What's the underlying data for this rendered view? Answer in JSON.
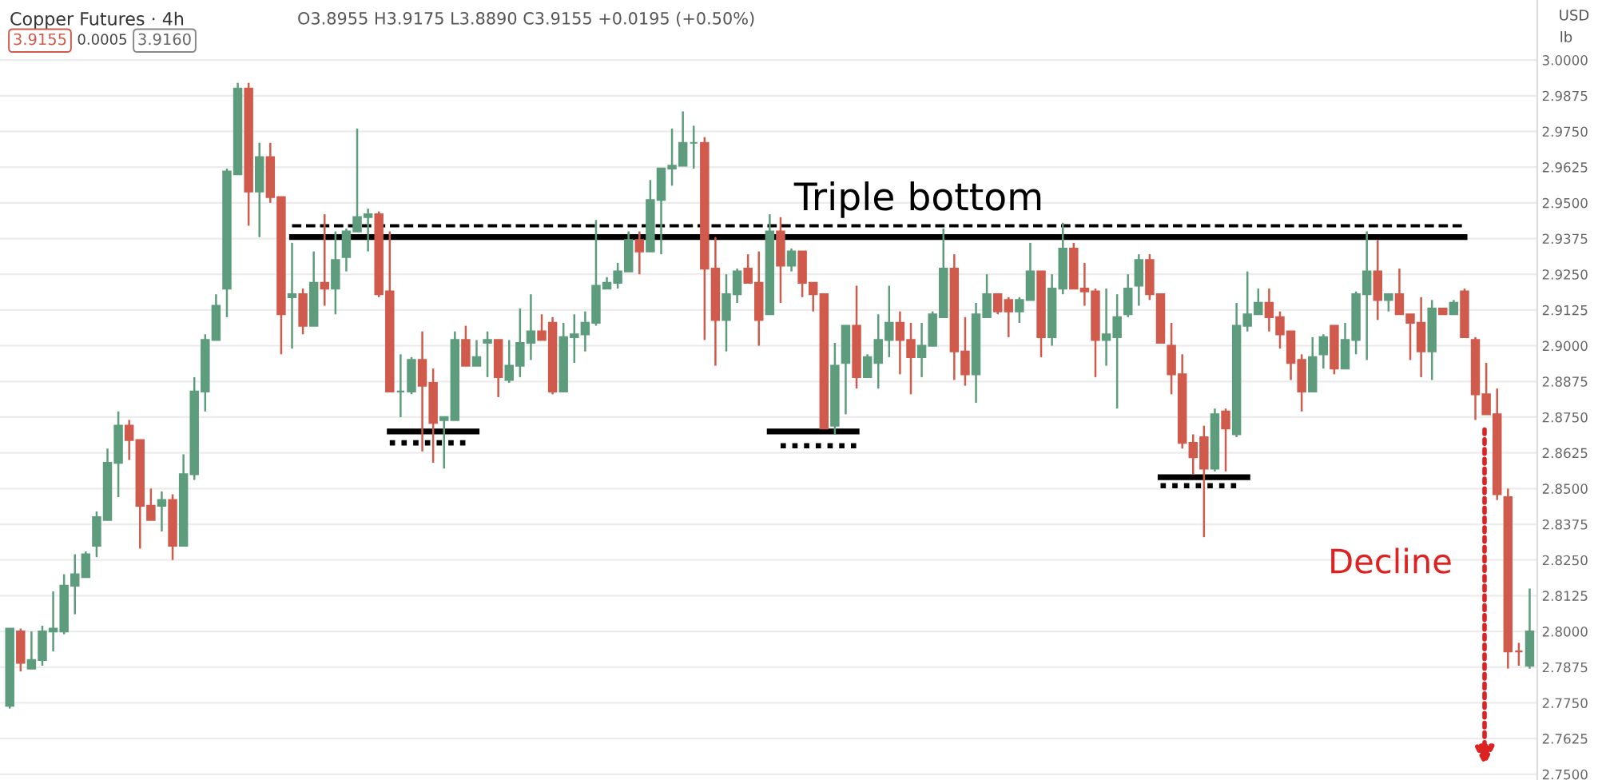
{
  "chart_data": {
    "type": "candlestick",
    "title": "Copper Futures · 4h",
    "categories": [
      null,
      null,
      null,
      null,
      null,
      null,
      null,
      null,
      null,
      null,
      null,
      null,
      null,
      null,
      null,
      null,
      null,
      null,
      null,
      null,
      null,
      null,
      null,
      null,
      null,
      null,
      null,
      null,
      null,
      null,
      null,
      null,
      null,
      null,
      null,
      null,
      null,
      null,
      null,
      null,
      null,
      null,
      null,
      null,
      null,
      null,
      null,
      null,
      null,
      null,
      null,
      null,
      null,
      null,
      null,
      null,
      null,
      null,
      null,
      null,
      null,
      null,
      null,
      null,
      null,
      null,
      null,
      null,
      null,
      null,
      null,
      null,
      null,
      null,
      null,
      null,
      null,
      null,
      null,
      null,
      null,
      null,
      null,
      null,
      null,
      null,
      null,
      null,
      null,
      null,
      null,
      null,
      null,
      null,
      null,
      null,
      null,
      null,
      null,
      null,
      null,
      null,
      null,
      null,
      null,
      null,
      null,
      null,
      null,
      null,
      null,
      null,
      null,
      null,
      null,
      null,
      null,
      null,
      null,
      null,
      null,
      null,
      null,
      null,
      null,
      null,
      null,
      null,
      null,
      null,
      null,
      null,
      null,
      null,
      null,
      null,
      null,
      null,
      null,
      null,
      null
    ],
    "ohlc": [
      [
        2.774,
        2.801,
        2.773,
        2.801
      ],
      [
        2.8,
        2.801,
        2.786,
        2.789
      ],
      [
        2.787,
        2.8,
        2.787,
        2.79
      ],
      [
        2.79,
        2.802,
        2.788,
        2.8
      ],
      [
        2.8,
        2.814,
        2.793,
        2.801
      ],
      [
        2.8,
        2.82,
        2.799,
        2.816
      ],
      [
        2.816,
        2.827,
        2.806,
        2.82
      ],
      [
        2.819,
        2.828,
        2.819,
        2.827
      ],
      [
        2.83,
        2.842,
        2.826,
        2.84
      ],
      [
        2.839,
        2.864,
        2.839,
        2.859
      ],
      [
        2.859,
        2.877,
        2.847,
        2.872
      ],
      [
        2.872,
        2.874,
        2.86,
        2.867
      ],
      [
        2.867,
        2.867,
        2.829,
        2.844
      ],
      [
        2.844,
        2.85,
        2.839,
        2.839
      ],
      [
        2.844,
        2.849,
        2.835,
        2.846
      ],
      [
        2.846,
        2.848,
        2.825,
        2.83
      ],
      [
        2.83,
        2.862,
        2.83,
        2.855
      ],
      [
        2.855,
        2.889,
        2.853,
        2.884
      ],
      [
        2.884,
        2.904,
        2.877,
        2.902
      ],
      [
        2.902,
        2.918,
        2.902,
        2.914
      ],
      [
        2.92,
        2.962,
        2.91,
        2.961
      ],
      [
        2.96,
        2.992,
        2.96,
        2.99
      ],
      [
        2.99,
        2.992,
        2.942,
        2.954
      ],
      [
        2.954,
        2.971,
        2.938,
        2.966
      ],
      [
        2.966,
        2.971,
        2.95,
        2.952
      ],
      [
        2.952,
        2.952,
        2.897,
        2.911
      ],
      [
        2.917,
        2.936,
        2.899,
        2.918
      ],
      [
        2.918,
        2.92,
        2.904,
        2.907
      ],
      [
        2.907,
        2.933,
        2.907,
        2.922
      ],
      [
        2.922,
        2.946,
        2.914,
        2.92
      ],
      [
        2.92,
        2.94,
        2.911,
        2.93
      ],
      [
        2.931,
        2.941,
        2.926,
        2.94
      ],
      [
        2.94,
        2.976,
        2.94,
        2.945
      ],
      [
        2.945,
        2.948,
        2.933,
        2.946
      ],
      [
        2.946,
        2.947,
        2.917,
        2.918
      ],
      [
        2.919,
        2.94,
        2.884,
        2.884
      ],
      [
        2.884,
        2.897,
        2.875,
        2.884
      ],
      [
        2.884,
        2.896,
        2.883,
        2.895
      ],
      [
        2.895,
        2.905,
        2.863,
        2.886
      ],
      [
        2.887,
        2.892,
        2.859,
        2.873
      ],
      [
        2.874,
        2.875,
        2.857,
        2.875
      ],
      [
        2.874,
        2.905,
        2.874,
        2.902
      ],
      [
        2.902,
        2.907,
        2.893,
        2.893
      ],
      [
        2.893,
        2.902,
        2.893,
        2.896
      ],
      [
        2.901,
        2.905,
        2.889,
        2.902
      ],
      [
        2.902,
        2.902,
        2.882,
        2.889
      ],
      [
        2.888,
        2.902,
        2.887,
        2.893
      ],
      [
        2.893,
        2.913,
        2.889,
        2.901
      ],
      [
        2.901,
        2.918,
        2.895,
        2.905
      ],
      [
        2.905,
        2.911,
        2.902,
        2.902
      ],
      [
        2.908,
        2.91,
        2.883,
        2.884
      ],
      [
        2.884,
        2.908,
        2.884,
        2.903
      ],
      [
        2.903,
        2.911,
        2.894,
        2.904
      ],
      [
        2.904,
        2.912,
        2.898,
        2.908
      ],
      [
        2.908,
        2.944,
        2.907,
        2.921
      ],
      [
        2.92,
        2.924,
        2.92,
        2.922
      ],
      [
        2.922,
        2.929,
        2.92,
        2.926
      ],
      [
        2.926,
        2.94,
        2.926,
        2.937
      ],
      [
        2.937,
        2.94,
        2.925,
        2.933
      ],
      [
        2.933,
        2.958,
        2.933,
        2.951
      ],
      [
        2.951,
        2.962,
        2.932,
        2.962
      ],
      [
        2.962,
        2.976,
        2.956,
        2.963
      ],
      [
        2.963,
        2.982,
        2.963,
        2.971
      ],
      [
        2.971,
        2.977,
        2.962,
        2.971
      ],
      [
        2.971,
        2.973,
        2.902,
        2.927
      ],
      [
        2.927,
        2.938,
        2.893,
        2.909
      ],
      [
        2.909,
        2.925,
        2.898,
        2.918
      ],
      [
        2.918,
        2.927,
        2.915,
        2.926
      ],
      [
        2.927,
        2.932,
        2.922,
        2.922
      ],
      [
        2.922,
        2.933,
        2.9,
        2.909
      ],
      [
        2.911,
        2.946,
        2.911,
        2.94
      ],
      [
        2.94,
        2.945,
        2.915,
        2.928
      ],
      [
        2.928,
        2.934,
        2.926,
        2.933
      ],
      [
        2.933,
        2.933,
        2.917,
        2.922
      ],
      [
        2.922,
        2.922,
        2.912,
        2.918
      ],
      [
        2.918,
        2.918,
        2.871,
        2.871
      ],
      [
        2.872,
        2.901,
        2.869,
        2.893
      ],
      [
        2.894,
        2.907,
        2.876,
        2.907
      ],
      [
        2.907,
        2.921,
        2.885,
        2.889
      ],
      [
        2.889,
        2.897,
        2.889,
        2.896
      ],
      [
        2.894,
        2.911,
        2.885,
        2.902
      ],
      [
        2.902,
        2.921,
        2.896,
        2.908
      ],
      [
        2.908,
        2.912,
        2.89,
        2.902
      ],
      [
        2.902,
        2.908,
        2.883,
        2.896
      ],
      [
        2.896,
        2.908,
        2.889,
        2.9
      ],
      [
        2.9,
        2.912,
        2.9,
        2.911
      ],
      [
        2.91,
        2.941,
        2.91,
        2.927
      ],
      [
        2.927,
        2.932,
        2.888,
        2.898
      ],
      [
        2.898,
        2.91,
        2.886,
        2.89
      ],
      [
        2.89,
        2.915,
        2.88,
        2.911
      ],
      [
        2.91,
        2.925,
        2.91,
        2.918
      ],
      [
        2.918,
        2.918,
        2.911,
        2.912
      ],
      [
        2.916,
        2.917,
        2.903,
        2.912
      ],
      [
        2.912,
        2.917,
        2.908,
        2.916
      ],
      [
        2.916,
        2.936,
        2.916,
        2.926
      ],
      [
        2.926,
        2.926,
        2.896,
        2.903
      ],
      [
        2.903,
        2.925,
        2.9,
        2.92
      ],
      [
        2.92,
        2.943,
        2.918,
        2.934
      ],
      [
        2.934,
        2.936,
        2.92,
        2.92
      ],
      [
        2.92,
        2.929,
        2.914,
        2.919
      ],
      [
        2.919,
        2.92,
        2.889,
        2.902
      ],
      [
        2.902,
        2.92,
        2.893,
        2.904
      ],
      [
        2.903,
        2.918,
        2.878,
        2.91
      ],
      [
        2.911,
        2.925,
        2.91,
        2.92
      ],
      [
        2.921,
        2.932,
        2.914,
        2.93
      ],
      [
        2.93,
        2.932,
        2.916,
        2.918
      ],
      [
        2.918,
        2.918,
        2.901,
        2.901
      ],
      [
        2.9,
        2.908,
        2.883,
        2.89
      ],
      [
        2.89,
        2.897,
        2.864,
        2.866
      ],
      [
        2.866,
        2.869,
        2.855,
        2.861
      ],
      [
        2.868,
        2.872,
        2.833,
        2.857
      ],
      [
        2.857,
        2.878,
        2.856,
        2.876
      ],
      [
        2.877,
        2.878,
        2.856,
        2.871
      ],
      [
        2.869,
        2.915,
        2.868,
        2.907
      ],
      [
        2.907,
        2.926,
        2.905,
        2.911
      ],
      [
        2.911,
        2.92,
        2.911,
        2.915
      ],
      [
        2.915,
        2.92,
        2.905,
        2.91
      ],
      [
        2.91,
        2.912,
        2.899,
        2.904
      ],
      [
        2.905,
        2.905,
        2.888,
        2.894
      ],
      [
        2.895,
        2.897,
        2.877,
        2.884
      ],
      [
        2.884,
        2.903,
        2.884,
        2.896
      ],
      [
        2.897,
        2.904,
        2.892,
        2.903
      ],
      [
        2.907,
        2.907,
        2.89,
        2.892
      ],
      [
        2.892,
        2.908,
        2.892,
        2.902
      ],
      [
        2.902,
        2.919,
        2.897,
        2.918
      ],
      [
        2.918,
        2.94,
        2.895,
        2.926
      ],
      [
        2.926,
        2.937,
        2.909,
        2.916
      ],
      [
        2.916,
        2.918,
        2.912,
        2.918
      ],
      [
        2.918,
        2.927,
        2.911,
        2.911
      ],
      [
        2.911,
        2.911,
        2.895,
        2.908
      ],
      [
        2.908,
        2.917,
        2.889,
        2.898
      ],
      [
        2.898,
        2.916,
        2.888,
        2.913
      ],
      [
        2.913,
        2.913,
        2.911,
        2.911
      ],
      [
        2.911,
        2.916,
        2.911,
        2.915
      ],
      [
        2.919,
        2.92,
        2.903,
        2.903
      ],
      [
        2.902,
        2.903,
        2.874,
        2.883
      ],
      [
        2.883,
        2.894,
        2.876,
        2.876
      ],
      [
        2.876,
        2.885,
        2.846,
        2.848
      ],
      [
        2.847,
        2.85,
        2.787,
        2.793
      ],
      [
        2.793,
        2.796,
        2.788,
        2.793
      ],
      [
        2.788,
        2.815,
        2.787,
        2.8
      ]
    ],
    "colors": [
      "#5d9c7c",
      "#d05a4b",
      "#5d9c7c",
      "#5d9c7c",
      "#5d9c7c",
      "#5d9c7c",
      "#5d9c7c",
      "#5d9c7c",
      "#5d9c7c",
      "#5d9c7c",
      "#5d9c7c",
      "#d05a4b",
      "#d05a4b",
      "#d05a4b",
      "#5d9c7c",
      "#d05a4b",
      "#5d9c7c",
      "#5d9c7c",
      "#5d9c7c",
      "#5d9c7c",
      "#5d9c7c",
      "#5d9c7c",
      "#d05a4b",
      "#5d9c7c",
      "#d05a4b",
      "#d05a4b",
      "#5d9c7c",
      "#d05a4b",
      "#5d9c7c",
      "#d05a4b",
      "#5d9c7c",
      "#5d9c7c",
      "#5d9c7c",
      "#5d9c7c",
      "#d05a4b",
      "#d05a4b",
      "#5d9c7c",
      "#5d9c7c",
      "#d05a4b",
      "#d05a4b",
      "#5d9c7c",
      "#5d9c7c",
      "#d05a4b",
      "#5d9c7c",
      "#5d9c7c",
      "#d05a4b",
      "#5d9c7c",
      "#5d9c7c",
      "#5d9c7c",
      "#d05a4b",
      "#d05a4b",
      "#5d9c7c",
      "#5d9c7c",
      "#5d9c7c",
      "#5d9c7c",
      "#5d9c7c",
      "#5d9c7c",
      "#5d9c7c",
      "#d05a4b",
      "#5d9c7c",
      "#5d9c7c",
      "#5d9c7c",
      "#5d9c7c",
      "#5d9c7c",
      "#d05a4b",
      "#d05a4b",
      "#5d9c7c",
      "#5d9c7c",
      "#d05a4b",
      "#d05a4b",
      "#5d9c7c",
      "#d05a4b",
      "#5d9c7c",
      "#d05a4b",
      "#d05a4b",
      "#d05a4b",
      "#5d9c7c",
      "#5d9c7c",
      "#d05a4b",
      "#5d9c7c",
      "#5d9c7c",
      "#5d9c7c",
      "#d05a4b",
      "#d05a4b",
      "#5d9c7c",
      "#5d9c7c",
      "#5d9c7c",
      "#d05a4b",
      "#d05a4b",
      "#5d9c7c",
      "#5d9c7c",
      "#d05a4b",
      "#d05a4b",
      "#5d9c7c",
      "#5d9c7c",
      "#d05a4b",
      "#5d9c7c",
      "#5d9c7c",
      "#d05a4b",
      "#d05a4b",
      "#d05a4b",
      "#5d9c7c",
      "#5d9c7c",
      "#5d9c7c",
      "#5d9c7c",
      "#d05a4b",
      "#d05a4b",
      "#d05a4b",
      "#d05a4b",
      "#d05a4b",
      "#d05a4b",
      "#5d9c7c",
      "#d05a4b",
      "#5d9c7c",
      "#5d9c7c",
      "#5d9c7c",
      "#d05a4b",
      "#d05a4b",
      "#d05a4b",
      "#d05a4b",
      "#5d9c7c",
      "#5d9c7c",
      "#d05a4b",
      "#5d9c7c",
      "#5d9c7c",
      "#5d9c7c",
      "#d05a4b",
      "#5d9c7c",
      "#d05a4b",
      "#d05a4b",
      "#d05a4b",
      "#5d9c7c",
      "#d05a4b",
      "#5d9c7c",
      "#d05a4b",
      "#d05a4b",
      "#d05a4b",
      "#d05a4b",
      "#d05a4b",
      "#d05a4b",
      "#5d9c7c"
    ],
    "series": [
      {
        "type": "line",
        "color": "#000000",
        "line_style": "dashed",
        "values": [
          null,
          null,
          null,
          null,
          null,
          null,
          null,
          null,
          null,
          null,
          null,
          null,
          null,
          null,
          null,
          null,
          null,
          null,
          null,
          null,
          null,
          null,
          null,
          null,
          null,
          null,
          2.942,
          2.942,
          2.942,
          2.942,
          2.942,
          2.942,
          2.942,
          2.942,
          2.942,
          2.942,
          2.942,
          2.942,
          2.942,
          2.942,
          2.942,
          2.942,
          2.942,
          2.942,
          2.942,
          2.942,
          2.942,
          2.942,
          2.942,
          2.942,
          2.942,
          2.942,
          2.942,
          2.942,
          2.942,
          2.942,
          2.942,
          2.942,
          2.942,
          2.942,
          2.942,
          2.942,
          2.942,
          2.942,
          2.942,
          2.942,
          2.942,
          2.942,
          2.942,
          2.942,
          2.942,
          2.942,
          2.942,
          2.942,
          2.942,
          2.942,
          2.942,
          2.942,
          2.942,
          2.942,
          2.942,
          2.942,
          2.942,
          2.942,
          2.942,
          2.942,
          2.942,
          2.942,
          2.942,
          2.942,
          2.942,
          2.942,
          2.942,
          2.942,
          2.942,
          2.942,
          2.942,
          2.942,
          2.942,
          2.942,
          2.942,
          2.942,
          2.942,
          2.942,
          2.942,
          2.942,
          2.942,
          2.942,
          2.942,
          2.942,
          2.942,
          2.942,
          2.942,
          2.942,
          2.942,
          2.942,
          2.942,
          2.942,
          2.942,
          2.942,
          2.942,
          2.942,
          2.942,
          2.942,
          2.942,
          2.942,
          2.942,
          2.942,
          2.942,
          2.942,
          2.942,
          2.942,
          2.942,
          2.942,
          2.942,
          null,
          null,
          null,
          null,
          null,
          null
        ]
      },
      {
        "type": "line",
        "color": "#000000",
        "line_style": "solid",
        "values": [
          null,
          null,
          null,
          null,
          null,
          null,
          null,
          null,
          null,
          null,
          null,
          null,
          null,
          null,
          null,
          null,
          null,
          null,
          null,
          null,
          null,
          null,
          null,
          null,
          null,
          null,
          2.938,
          2.938,
          2.938,
          2.938,
          2.938,
          2.938,
          2.938,
          2.938,
          2.938,
          2.938,
          2.938,
          2.938,
          2.938,
          2.938,
          2.938,
          2.938,
          2.938,
          2.938,
          2.938,
          2.938,
          2.938,
          2.938,
          2.938,
          2.938,
          2.938,
          2.938,
          2.938,
          2.938,
          2.938,
          2.938,
          2.938,
          2.938,
          2.938,
          2.938,
          2.938,
          2.938,
          2.938,
          2.938,
          2.938,
          2.938,
          2.938,
          2.938,
          2.938,
          2.938,
          2.938,
          2.938,
          2.938,
          2.938,
          2.938,
          2.938,
          2.938,
          2.938,
          2.938,
          2.938,
          2.938,
          2.938,
          2.938,
          2.938,
          2.938,
          2.938,
          2.938,
          2.938,
          2.938,
          2.938,
          2.938,
          2.938,
          2.938,
          2.938,
          2.938,
          2.938,
          2.938,
          2.938,
          2.938,
          2.938,
          2.938,
          2.938,
          2.938,
          2.938,
          2.938,
          2.938,
          2.938,
          2.938,
          2.938,
          2.938,
          2.938,
          2.938,
          2.938,
          2.938,
          2.938,
          2.938,
          2.938,
          2.938,
          2.938,
          2.938,
          2.938,
          2.938,
          2.938,
          2.938,
          2.938,
          2.938,
          2.938,
          2.938,
          2.938,
          2.938,
          2.938,
          2.938,
          2.938,
          2.938,
          2.938,
          null,
          null,
          null,
          null,
          null,
          null
        ]
      },
      {
        "type": "line",
        "color": "#000000",
        "line_style": "solid",
        "values": [
          null,
          null,
          null,
          null,
          null,
          null,
          null,
          null,
          null,
          null,
          null,
          null,
          null,
          null,
          null,
          null,
          null,
          null,
          null,
          null,
          null,
          null,
          null,
          null,
          null,
          null,
          null,
          null,
          null,
          null,
          null,
          null,
          null,
          null,
          null,
          2.87,
          2.87,
          2.87,
          2.87,
          2.87,
          2.87,
          2.87,
          2.87,
          2.87,
          null,
          null,
          null,
          null,
          null,
          null,
          null,
          null,
          null,
          null,
          null,
          null,
          null,
          null,
          null,
          null,
          null,
          null,
          null,
          null,
          null,
          null,
          null,
          null,
          null,
          null,
          null,
          null,
          null,
          null,
          null,
          null,
          null,
          null,
          null,
          null,
          null,
          null,
          null,
          null,
          null,
          null,
          null,
          null,
          null,
          null,
          null,
          null,
          null,
          null,
          null,
          null,
          null,
          null,
          null,
          null,
          null,
          null,
          null,
          null,
          null,
          null,
          null,
          null,
          null,
          null,
          null,
          null,
          null,
          null,
          null,
          null,
          null,
          null,
          null,
          null,
          null,
          null,
          null,
          null,
          null,
          null,
          null,
          null,
          null,
          null,
          null,
          null,
          null,
          null,
          null,
          null,
          null,
          null,
          null,
          null,
          null
        ]
      },
      {
        "type": "line",
        "color": "#000000",
        "line_style": "dotted",
        "values": [
          null,
          null,
          null,
          null,
          null,
          null,
          null,
          null,
          null,
          null,
          null,
          null,
          null,
          null,
          null,
          null,
          null,
          null,
          null,
          null,
          null,
          null,
          null,
          null,
          null,
          null,
          null,
          null,
          null,
          null,
          null,
          null,
          null,
          null,
          null,
          2.866,
          2.866,
          2.866,
          2.866,
          2.866,
          2.866,
          2.866,
          2.866,
          null,
          null,
          null,
          null,
          null,
          null,
          null,
          null,
          null,
          null,
          null,
          null,
          null,
          null,
          null,
          null,
          null,
          null,
          null,
          null,
          null,
          null,
          null,
          null,
          null,
          null,
          null,
          null,
          null,
          null,
          null,
          null,
          null,
          null,
          null,
          null,
          null,
          null,
          null,
          null,
          null,
          null,
          null,
          null,
          null,
          null,
          null,
          null,
          null,
          null,
          null,
          null,
          null,
          null,
          null,
          null,
          null,
          null,
          null,
          null,
          null,
          null,
          null,
          null,
          null,
          null,
          null,
          null,
          null,
          null,
          null,
          null,
          null,
          null,
          null,
          null,
          null,
          null,
          null,
          null,
          null,
          null,
          null,
          null,
          null,
          null,
          null,
          null,
          null,
          null,
          null,
          null,
          null,
          null,
          null,
          null,
          null,
          null
        ]
      },
      {
        "type": "line",
        "color": "#000000",
        "line_style": "solid",
        "values": [
          null,
          null,
          null,
          null,
          null,
          null,
          null,
          null,
          null,
          null,
          null,
          null,
          null,
          null,
          null,
          null,
          null,
          null,
          null,
          null,
          null,
          null,
          null,
          null,
          null,
          null,
          null,
          null,
          null,
          null,
          null,
          null,
          null,
          null,
          null,
          null,
          null,
          null,
          null,
          null,
          null,
          null,
          null,
          null,
          null,
          null,
          null,
          null,
          null,
          null,
          null,
          null,
          null,
          null,
          null,
          null,
          null,
          null,
          null,
          null,
          null,
          null,
          null,
          null,
          null,
          null,
          null,
          null,
          null,
          null,
          2.87,
          2.87,
          2.87,
          2.87,
          2.87,
          2.87,
          2.87,
          2.87,
          2.87,
          null,
          null,
          null,
          null,
          null,
          null,
          null,
          null,
          null,
          null,
          null,
          null,
          null,
          null,
          null,
          null,
          null,
          null,
          null,
          null,
          null,
          null,
          null,
          null,
          null,
          null,
          null,
          null,
          null,
          null,
          null,
          null,
          null,
          null,
          null,
          null,
          null,
          null,
          null,
          null,
          null,
          null,
          null,
          null,
          null,
          null,
          null,
          null,
          null,
          null,
          null,
          null,
          null,
          null,
          null,
          null,
          null,
          null,
          null,
          null,
          null,
          null
        ]
      },
      {
        "type": "line",
        "color": "#000000",
        "line_style": "dotted",
        "values": [
          null,
          null,
          null,
          null,
          null,
          null,
          null,
          null,
          null,
          null,
          null,
          null,
          null,
          null,
          null,
          null,
          null,
          null,
          null,
          null,
          null,
          null,
          null,
          null,
          null,
          null,
          null,
          null,
          null,
          null,
          null,
          null,
          null,
          null,
          null,
          null,
          null,
          null,
          null,
          null,
          null,
          null,
          null,
          null,
          null,
          null,
          null,
          null,
          null,
          null,
          null,
          null,
          null,
          null,
          null,
          null,
          null,
          null,
          null,
          null,
          null,
          null,
          null,
          null,
          null,
          null,
          null,
          null,
          null,
          null,
          null,
          2.865,
          2.865,
          2.865,
          2.865,
          2.865,
          2.865,
          2.865,
          2.865,
          null,
          null,
          null,
          null,
          null,
          null,
          null,
          null,
          null,
          null,
          null,
          null,
          null,
          null,
          null,
          null,
          null,
          null,
          null,
          null,
          null,
          null,
          null,
          null,
          null,
          null,
          null,
          null,
          null,
          null,
          null,
          null,
          null,
          null,
          null,
          null,
          null,
          null,
          null,
          null,
          null,
          null,
          null,
          null,
          null,
          null,
          null,
          null,
          null,
          null,
          null,
          null,
          null,
          null,
          null,
          null,
          null,
          null,
          null,
          null,
          null,
          null
        ]
      },
      {
        "type": "line",
        "color": "#000000",
        "line_style": "solid",
        "values": [
          null,
          null,
          null,
          null,
          null,
          null,
          null,
          null,
          null,
          null,
          null,
          null,
          null,
          null,
          null,
          null,
          null,
          null,
          null,
          null,
          null,
          null,
          null,
          null,
          null,
          null,
          null,
          null,
          null,
          null,
          null,
          null,
          null,
          null,
          null,
          null,
          null,
          null,
          null,
          null,
          null,
          null,
          null,
          null,
          null,
          null,
          null,
          null,
          null,
          null,
          null,
          null,
          null,
          null,
          null,
          null,
          null,
          null,
          null,
          null,
          null,
          null,
          null,
          null,
          null,
          null,
          null,
          null,
          null,
          null,
          null,
          null,
          null,
          null,
          null,
          null,
          null,
          null,
          null,
          null,
          null,
          null,
          null,
          null,
          null,
          null,
          null,
          null,
          null,
          null,
          null,
          null,
          null,
          null,
          null,
          null,
          null,
          null,
          null,
          null,
          null,
          null,
          null,
          null,
          null,
          null,
          2.854,
          2.854,
          2.854,
          2.854,
          2.854,
          2.854,
          2.854,
          2.854,
          2.854,
          null,
          null,
          null,
          null,
          null,
          null,
          null,
          null,
          null,
          null,
          null,
          null,
          null,
          null,
          null,
          null,
          null,
          null,
          null,
          null,
          null,
          null,
          null,
          null,
          null,
          null
        ]
      },
      {
        "type": "line",
        "color": "#000000",
        "line_style": "dotted",
        "values": [
          null,
          null,
          null,
          null,
          null,
          null,
          null,
          null,
          null,
          null,
          null,
          null,
          null,
          null,
          null,
          null,
          null,
          null,
          null,
          null,
          null,
          null,
          null,
          null,
          null,
          null,
          null,
          null,
          null,
          null,
          null,
          null,
          null,
          null,
          null,
          null,
          null,
          null,
          null,
          null,
          null,
          null,
          null,
          null,
          null,
          null,
          null,
          null,
          null,
          null,
          null,
          null,
          null,
          null,
          null,
          null,
          null,
          null,
          null,
          null,
          null,
          null,
          null,
          null,
          null,
          null,
          null,
          null,
          null,
          null,
          null,
          null,
          null,
          null,
          null,
          null,
          null,
          null,
          null,
          null,
          null,
          null,
          null,
          null,
          null,
          null,
          null,
          null,
          null,
          null,
          null,
          null,
          null,
          null,
          null,
          null,
          null,
          null,
          null,
          null,
          null,
          null,
          null,
          null,
          null,
          null,
          2.851,
          2.851,
          2.851,
          2.851,
          2.851,
          2.851,
          2.851,
          2.851,
          null,
          null,
          null,
          null,
          null,
          null,
          null,
          null,
          null,
          null,
          null,
          null,
          null,
          null,
          null,
          null,
          null,
          null,
          null,
          null,
          null,
          null,
          null,
          null,
          null,
          null,
          null
        ]
      }
    ],
    "ylim": [
      2.748,
      3.021
    ],
    "yticks": [
      {
        "value": 2.75,
        "label": "2.7500"
      },
      {
        "value": 2.7625,
        "label": "2.7625"
      },
      {
        "value": 2.775,
        "label": "2.7750"
      },
      {
        "value": 2.7875,
        "label": "2.7875"
      },
      {
        "value": 2.8,
        "label": "2.8000"
      },
      {
        "value": 2.8125,
        "label": "2.8125"
      },
      {
        "value": 2.825,
        "label": "2.8250"
      },
      {
        "value": 2.8375,
        "label": "2.8375"
      },
      {
        "value": 2.85,
        "label": "2.8500"
      },
      {
        "value": 2.8625,
        "label": "2.8625"
      },
      {
        "value": 2.875,
        "label": "2.8750"
      },
      {
        "value": 2.8875,
        "label": "2.8875"
      },
      {
        "value": 2.9,
        "label": "2.9000"
      },
      {
        "value": 2.9125,
        "label": "2.9125"
      },
      {
        "value": 2.925,
        "label": "2.9250"
      },
      {
        "value": 2.9375,
        "label": "2.9375"
      },
      {
        "value": 2.95,
        "label": "2.9500"
      },
      {
        "value": 2.9625,
        "label": "2.9625"
      },
      {
        "value": 2.975,
        "label": "2.9750"
      },
      {
        "value": 2.9875,
        "label": "2.9875"
      },
      {
        "value": 3.0,
        "label": "3.0000"
      }
    ],
    "grid": "y",
    "tick_labels": "y",
    "annotations": [
      "O3.8955 H3.9175 L3.8890 C3.9155 +0.0195 (+0.50%)",
      "3.9155",
      "0.0005",
      "3.9160",
      "USD",
      "lb",
      "Triple bottom",
      "Decline"
    ]
  }
}
